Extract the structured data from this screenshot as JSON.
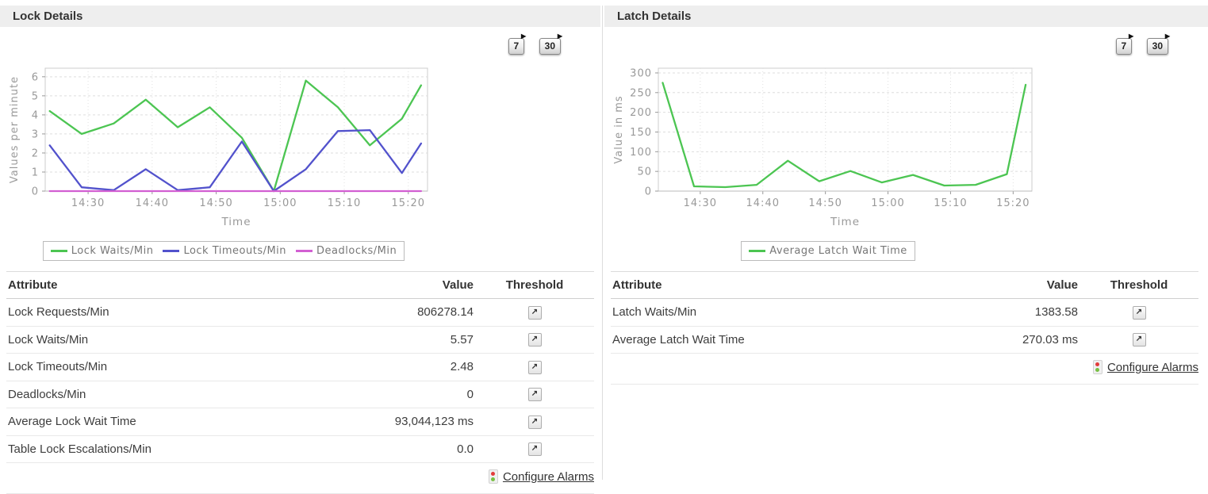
{
  "colors": {
    "header_bar": "#eeeeee",
    "lock_waits_green": "#4cc552",
    "lock_timeouts_blue": "#5252cc",
    "deadlocks_magenta": "#d25fd2",
    "alarm_red": "#e23b3b",
    "alarm_green": "#78c043"
  },
  "icons": {
    "history_arrow": "▶",
    "threshold_arrow": "↗"
  },
  "panels": [
    {
      "title": "Lock Details",
      "buttons": [
        {
          "label": "7"
        },
        {
          "label": "30"
        }
      ],
      "table": {
        "headers": [
          "Attribute",
          "Value",
          "Threshold"
        ],
        "rows": [
          {
            "attribute": "Lock Requests/Min",
            "value": "806278.14"
          },
          {
            "attribute": "Lock Waits/Min",
            "value": "5.57"
          },
          {
            "attribute": "Lock Timeouts/Min",
            "value": "2.48"
          },
          {
            "attribute": "Deadlocks/Min",
            "value": "0"
          },
          {
            "attribute": "Average Lock Wait Time",
            "value": "93,044,123 ms"
          },
          {
            "attribute": "Table Lock Escalations/Min",
            "value": "0.0"
          }
        ],
        "footer_link": "Configure Alarms"
      }
    },
    {
      "title": "Latch Details",
      "buttons": [
        {
          "label": "7"
        },
        {
          "label": "30"
        }
      ],
      "table": {
        "headers": [
          "Attribute",
          "Value",
          "Threshold"
        ],
        "rows": [
          {
            "attribute": "Latch Waits/Min",
            "value": "1383.58"
          },
          {
            "attribute": "Average Latch Wait Time",
            "value": "270.03 ms"
          }
        ],
        "footer_link": "Configure Alarms"
      }
    }
  ],
  "chart_data": [
    {
      "type": "line",
      "title": "",
      "xlabel": "Time",
      "ylabel": "Values per minute",
      "grid": true,
      "legend_position": "bottom",
      "x_minutes": [
        24,
        29,
        34,
        39,
        44,
        49,
        54,
        59,
        64,
        69,
        74,
        79,
        82
      ],
      "xlim": [
        23.3,
        83.0
      ],
      "ylim": [
        0,
        6.45
      ],
      "yticks": [
        0,
        1,
        2,
        3,
        4,
        5,
        6
      ],
      "xticks": [
        {
          "m": 30,
          "label": "14:30"
        },
        {
          "m": 40,
          "label": "14:40"
        },
        {
          "m": 50,
          "label": "14:50"
        },
        {
          "m": 60,
          "label": "15:00"
        },
        {
          "m": 70,
          "label": "15:10"
        },
        {
          "m": 80,
          "label": "15:20"
        }
      ],
      "series": [
        {
          "name": "Lock Waits/Min",
          "color": "#4cc552",
          "values": [
            4.2,
            3.0,
            3.55,
            4.8,
            3.35,
            4.4,
            2.8,
            0.0,
            5.8,
            4.4,
            2.4,
            3.8,
            5.55
          ]
        },
        {
          "name": "Lock Timeouts/Min",
          "color": "#5252cc",
          "values": [
            2.4,
            0.2,
            0.05,
            1.15,
            0.05,
            0.2,
            2.6,
            0.0,
            1.15,
            3.15,
            3.2,
            0.95,
            2.5
          ]
        },
        {
          "name": "Deadlocks/Min",
          "color": "#d25fd2",
          "values": [
            0,
            0,
            0,
            0,
            0,
            0,
            0,
            0,
            0,
            0,
            0,
            0,
            0
          ]
        }
      ]
    },
    {
      "type": "line",
      "title": "",
      "xlabel": "Time",
      "ylabel": "Value in ms",
      "grid": true,
      "legend_position": "bottom",
      "x_minutes": [
        24,
        29,
        34,
        39,
        44,
        49,
        54,
        59,
        64,
        69,
        74,
        79,
        82
      ],
      "xlim": [
        23.3,
        83.0
      ],
      "ylim": [
        0,
        312
      ],
      "yticks": [
        0,
        50,
        100,
        150,
        200,
        250,
        300
      ],
      "xticks": [
        {
          "m": 30,
          "label": "14:30"
        },
        {
          "m": 40,
          "label": "14:40"
        },
        {
          "m": 50,
          "label": "14:50"
        },
        {
          "m": 60,
          "label": "15:00"
        },
        {
          "m": 70,
          "label": "15:10"
        },
        {
          "m": 80,
          "label": "15:20"
        }
      ],
      "series": [
        {
          "name": "Average Latch Wait Time",
          "color": "#4cc552",
          "values": [
            275,
            12,
            10,
            16,
            77,
            25,
            51,
            22,
            41,
            14,
            16,
            43,
            270
          ]
        }
      ]
    }
  ]
}
